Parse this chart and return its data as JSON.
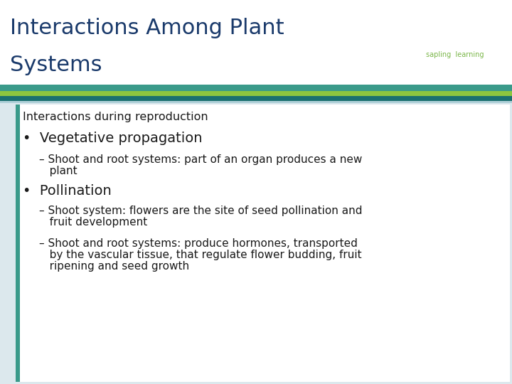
{
  "title_line1": "Interactions Among Plant",
  "title_line2": "Systems",
  "title_color": "#1a3a6b",
  "background_color": "#ffffff",
  "content_bg_color": "#dce8ed",
  "banner_teal": "#3a9a8a",
  "banner_green": "#8dc63f",
  "banner_dark_teal": "#1a7070",
  "banner_light": "#b0d0d8",
  "logo_text": "sapling  learning",
  "logo_color": "#7ab648",
  "subheading": "Interactions during reproduction",
  "subheading_fontsize": 11.5,
  "bullet1": "Vegetative propagation",
  "bullet1_fontsize": 14,
  "sub_bullet1_line1": "– Shoot and root systems: part of an organ produces a new",
  "sub_bullet1_line2": "   plant",
  "sub_bullet1_fontsize": 11,
  "bullet2": "Pollination",
  "bullet2_fontsize": 14,
  "sub_bullet2a_line1": "– Shoot system: flowers are the site of seed pollination and",
  "sub_bullet2a_line2": "   fruit development",
  "sub_bullet2a_fontsize": 11,
  "sub_bullet2b_line1": "– Shoot and root systems: produce hormones, transported",
  "sub_bullet2b_line2": "   by the vascular tissue, that regulate flower budding, fruit",
  "sub_bullet2b_line3": "   ripening and seed growth",
  "sub_bullet2b_fontsize": 11,
  "text_color": "#1a1a1a",
  "left_bar_color": "#3a9a8a"
}
